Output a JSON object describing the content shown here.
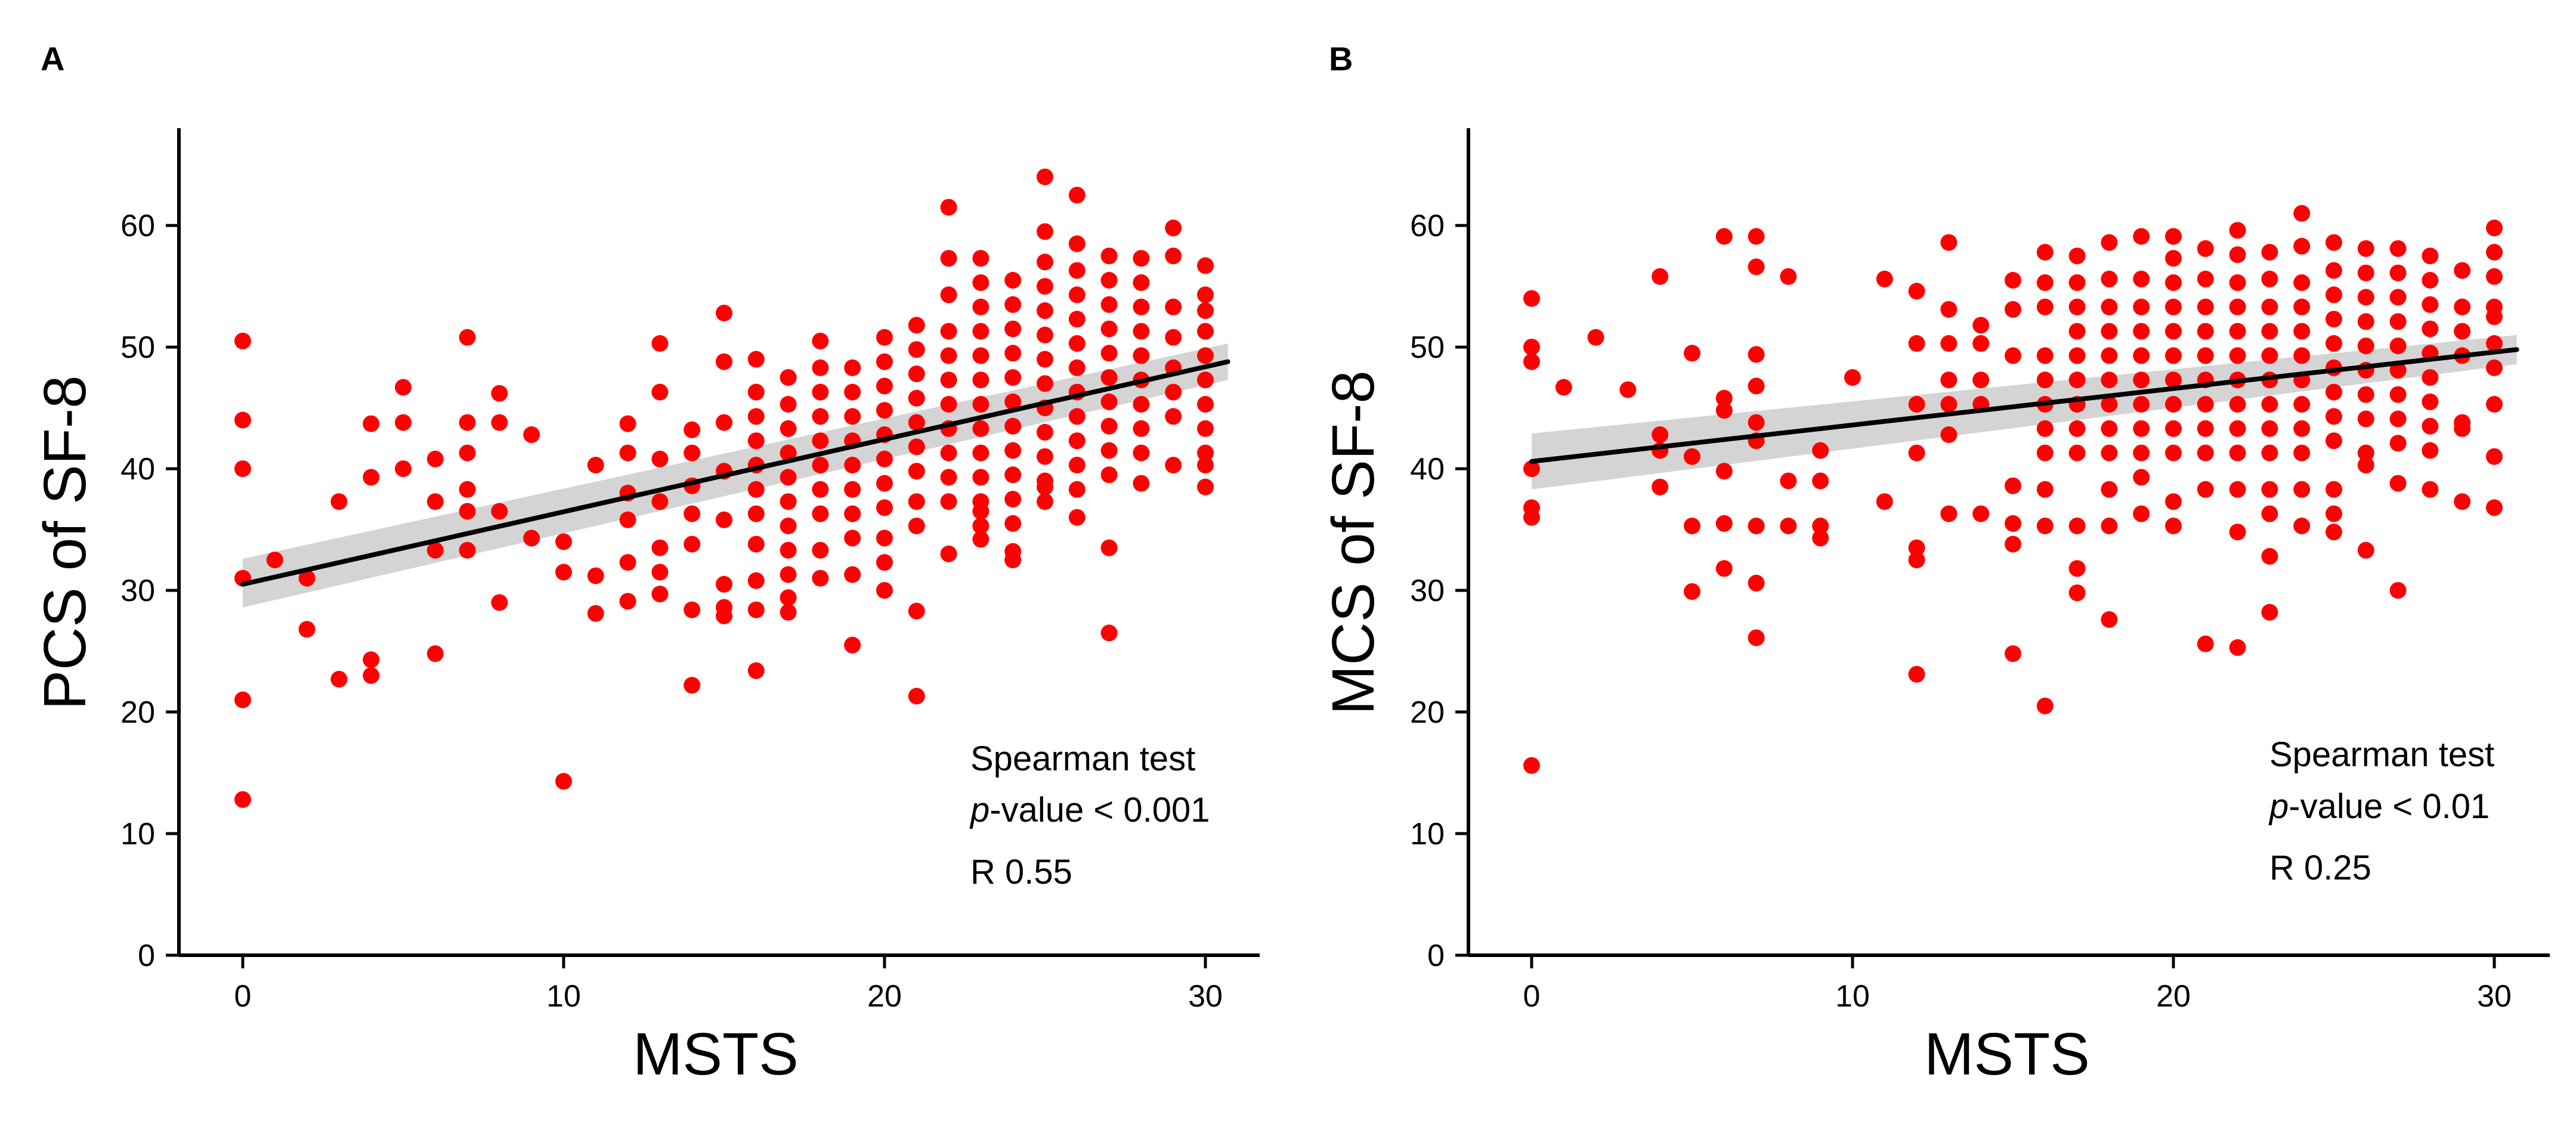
{
  "figure": {
    "panels": [
      {
        "label": "A",
        "xlabel": "MSTS",
        "ylabel": "PCS of SF-8",
        "annotation": {
          "line1": "Spearman test",
          "p_italic": "p",
          "p_rest": "-value < 0.001",
          "line3": "R 0.55"
        }
      },
      {
        "label": "B",
        "xlabel": "MSTS",
        "ylabel": "MCS of SF-8",
        "annotation": {
          "line1": "Spearman test",
          "p_italic": "p",
          "p_rest": "-value < 0.01",
          "line3": "R 0.25"
        }
      }
    ]
  },
  "colors": {
    "points": "#ff0000",
    "fit_line": "#000000",
    "confidence_band": "#cfcfcf",
    "axes": "#000000"
  },
  "chart_data": [
    {
      "type": "scatter",
      "title": "",
      "xlabel": "MSTS",
      "ylabel": "PCS of SF-8",
      "xlim": [
        -2,
        31.5
      ],
      "ylim": [
        0,
        68
      ],
      "xticks": [
        0,
        10,
        20,
        30
      ],
      "yticks": [
        0,
        10,
        20,
        30,
        40,
        50,
        60
      ],
      "grid": false,
      "legend": "none",
      "fit": {
        "x": [
          0,
          30.7
        ],
        "y": [
          30.5,
          48.8
        ],
        "ci_low": [
          28.6,
          47.3
        ],
        "ci_high": [
          32.6,
          50.3
        ]
      },
      "series": [
        {
          "x": [
            0,
            0,
            0,
            0,
            0,
            0,
            1,
            2,
            2,
            3,
            3,
            4,
            4,
            4,
            4,
            5,
            5,
            5,
            6,
            6,
            6,
            6,
            7,
            7,
            7,
            7,
            7,
            7,
            8,
            8,
            8,
            8,
            9,
            9,
            10,
            10,
            10,
            11,
            11,
            11,
            12,
            12,
            12,
            12,
            12,
            12,
            13,
            13,
            13,
            13,
            13,
            13,
            13,
            14,
            14,
            14,
            14,
            14,
            14,
            14,
            15,
            15,
            15,
            15,
            15,
            15,
            15,
            15,
            16,
            16,
            16,
            16,
            16,
            16,
            16,
            16,
            16,
            16,
            16,
            17,
            17,
            17,
            17,
            17,
            17,
            17,
            17,
            17,
            17,
            17,
            18,
            18,
            18,
            18,
            18,
            18,
            18,
            18,
            18,
            18,
            19,
            19,
            19,
            19,
            19,
            19,
            19,
            19,
            19,
            19,
            20,
            20,
            20,
            20,
            20,
            20,
            20,
            20,
            20,
            20,
            20,
            21,
            21,
            21,
            21,
            21,
            21,
            21,
            21,
            21,
            21,
            21,
            22,
            22,
            22,
            22,
            22,
            22,
            22,
            22,
            22,
            22,
            22,
            22,
            23,
            23,
            23,
            23,
            23,
            23,
            23,
            23,
            23,
            23,
            23,
            23,
            23,
            23,
            24,
            24,
            24,
            24,
            24,
            24,
            24,
            24,
            24,
            24,
            24,
            24,
            24,
            25,
            25,
            25,
            25,
            25,
            25,
            25,
            25,
            25,
            25,
            25,
            25,
            25,
            25,
            26,
            26,
            26,
            26,
            26,
            26,
            26,
            26,
            26,
            26,
            26,
            26,
            26,
            27,
            27,
            27,
            27,
            27,
            27,
            27,
            27,
            27,
            27,
            27,
            27,
            28,
            28,
            28,
            28,
            28,
            28,
            28,
            28,
            28,
            28,
            29,
            29,
            29,
            29,
            29,
            29,
            29,
            29,
            30,
            30,
            30,
            30,
            30,
            30,
            30,
            30,
            30,
            30,
            30
          ],
          "y": [
            50.5,
            44,
            40,
            31,
            21,
            12.8,
            32.5,
            31,
            26.8,
            37.3,
            22.7,
            43.7,
            39.3,
            24.3,
            23,
            46.7,
            43.8,
            40,
            40.8,
            37.3,
            33.3,
            24.8,
            50.8,
            43.8,
            41.3,
            38.3,
            36.5,
            33.3,
            46.2,
            43.8,
            36.5,
            29,
            42.8,
            34.3,
            34,
            31.5,
            14.3,
            40.3,
            31.2,
            28.1,
            43.7,
            41.3,
            38,
            35.8,
            32.3,
            29.1,
            50.3,
            46.3,
            40.8,
            37.3,
            33.5,
            31.5,
            29.7,
            43.2,
            41.3,
            38.6,
            36.3,
            33.8,
            28.4,
            22.2,
            52.8,
            48.8,
            43.8,
            39.8,
            35.8,
            30.5,
            28.6,
            27.9,
            49,
            46.3,
            44.3,
            42.3,
            40.3,
            38.3,
            36.3,
            33.8,
            30.8,
            28.4,
            23.4,
            47.5,
            45.3,
            43.3,
            41.3,
            39.3,
            37.3,
            35.3,
            33.3,
            31.3,
            29.4,
            28.2,
            50.5,
            48.3,
            46.3,
            44.3,
            42.3,
            40.3,
            38.3,
            36.3,
            33.3,
            31,
            48.3,
            46.3,
            44.3,
            42.3,
            40.3,
            38.3,
            36.3,
            34.3,
            31.3,
            25.5,
            50.8,
            48.8,
            46.8,
            44.8,
            42.8,
            40.8,
            38.8,
            36.8,
            34.3,
            32.3,
            30,
            51.8,
            49.8,
            47.8,
            45.8,
            43.8,
            41.8,
            39.8,
            37.3,
            35.3,
            28.3,
            21.3,
            61.5,
            57.3,
            54.3,
            51.3,
            49.3,
            47.3,
            45.3,
            43.3,
            41.3,
            39.3,
            37.3,
            33,
            57.3,
            55.3,
            53.3,
            51.3,
            49.3,
            47.3,
            45.3,
            43.3,
            41.3,
            39.3,
            37.3,
            35.3,
            36.5,
            34.2,
            55.5,
            53.5,
            51.5,
            49.5,
            47.5,
            45.5,
            43.5,
            41.5,
            39.5,
            37.5,
            35.5,
            32.5,
            33.2,
            64,
            59.5,
            57,
            55,
            53,
            51,
            49,
            47,
            45,
            43,
            41,
            39,
            37.3,
            38.5,
            62.5,
            58.5,
            56.3,
            54.3,
            52.3,
            50.3,
            48.3,
            46.3,
            44.3,
            42.3,
            40.3,
            38.3,
            36,
            57.5,
            55.5,
            53.5,
            51.5,
            49.5,
            47.5,
            45.5,
            43.5,
            41.5,
            39.5,
            33.5,
            26.5,
            57.3,
            55.3,
            53.3,
            51.3,
            49.3,
            47.3,
            45.3,
            43.3,
            41.3,
            38.8,
            59.8,
            57.5,
            53.3,
            50.8,
            48.3,
            46.3,
            44.3,
            40.3,
            56.7,
            54.3,
            53,
            51.3,
            49.3,
            47.3,
            45.3,
            43.3,
            41.3,
            40.3,
            38.5
          ]
        }
      ]
    },
    {
      "type": "scatter",
      "title": "",
      "xlabel": "MSTS",
      "ylabel": "MCS of SF-8",
      "xlim": [
        -2,
        31.5
      ],
      "ylim": [
        0,
        68
      ],
      "xticks": [
        0,
        10,
        20,
        30
      ],
      "yticks": [
        0,
        10,
        20,
        30,
        40,
        50,
        60
      ],
      "grid": false,
      "legend": "none",
      "fit": {
        "x": [
          0,
          30.7
        ],
        "y": [
          40.6,
          49.8
        ],
        "ci_low": [
          38.3,
          48.6
        ],
        "ci_high": [
          42.9,
          51
        ]
      },
      "series": [
        {
          "x": [
            0,
            0,
            0,
            0,
            0,
            0,
            0,
            1,
            2,
            3,
            4,
            4,
            4,
            4,
            5,
            5,
            5,
            5,
            6,
            6,
            6,
            6,
            6,
            6,
            7,
            7,
            7,
            7,
            7,
            7,
            7,
            7,
            7,
            8,
            8,
            8,
            9,
            9,
            9,
            9,
            10,
            11,
            11,
            12,
            12,
            12,
            12,
            12,
            12,
            12,
            13,
            13,
            13,
            13,
            13,
            13,
            13,
            14,
            14,
            14,
            14,
            14,
            15,
            15,
            15,
            15,
            15,
            15,
            15,
            16,
            16,
            16,
            16,
            16,
            16,
            16,
            16,
            16,
            16,
            16,
            17,
            17,
            17,
            17,
            17,
            17,
            17,
            17,
            17,
            17,
            17,
            17,
            18,
            18,
            18,
            18,
            18,
            18,
            18,
            18,
            18,
            18,
            18,
            18,
            19,
            19,
            19,
            19,
            19,
            19,
            19,
            19,
            19,
            19,
            19,
            20,
            20,
            20,
            20,
            20,
            20,
            20,
            20,
            20,
            20,
            20,
            20,
            21,
            21,
            21,
            21,
            21,
            21,
            21,
            21,
            21,
            21,
            21,
            22,
            22,
            22,
            22,
            22,
            22,
            22,
            22,
            22,
            22,
            22,
            22,
            22,
            23,
            23,
            23,
            23,
            23,
            23,
            23,
            23,
            23,
            23,
            23,
            23,
            23,
            24,
            24,
            24,
            24,
            24,
            24,
            24,
            24,
            24,
            24,
            24,
            24,
            25,
            25,
            25,
            25,
            25,
            25,
            25,
            25,
            25,
            25,
            25,
            25,
            26,
            26,
            26,
            26,
            26,
            26,
            26,
            26,
            26,
            26,
            26,
            27,
            27,
            27,
            27,
            27,
            27,
            27,
            27,
            27,
            27,
            27,
            28,
            28,
            28,
            28,
            28,
            28,
            28,
            28,
            28,
            28,
            29,
            29,
            29,
            29,
            29,
            29,
            29,
            30,
            30,
            30,
            30,
            30,
            30,
            30,
            30,
            30,
            30
          ],
          "y": [
            54,
            50,
            48.8,
            40,
            36.8,
            36,
            15.6,
            46.7,
            50.8,
            46.5,
            55.8,
            42.8,
            41.5,
            38.5,
            49.5,
            41,
            35.3,
            29.9,
            59.1,
            45.8,
            44.8,
            39.8,
            35.5,
            31.8,
            59.1,
            56.6,
            49.4,
            46.8,
            43.8,
            42.3,
            35.3,
            30.6,
            26.1,
            55.8,
            39,
            35.3,
            41.5,
            39,
            35.3,
            34.3,
            47.5,
            55.6,
            37.3,
            54.6,
            50.3,
            45.3,
            41.3,
            33.5,
            32.5,
            23.1,
            58.6,
            53.1,
            50.3,
            47.3,
            45.3,
            42.8,
            36.3,
            51.8,
            50.3,
            47.3,
            45.3,
            36.3,
            55.5,
            53.1,
            49.3,
            38.6,
            35.5,
            33.8,
            24.8,
            57.8,
            55.3,
            53.3,
            49.3,
            47.3,
            45.3,
            43.3,
            41.3,
            38.3,
            35.3,
            20.5,
            57.5,
            55.3,
            53.3,
            51.3,
            49.3,
            47.3,
            45.3,
            43.3,
            41.3,
            35.3,
            31.8,
            29.8,
            58.6,
            55.6,
            53.3,
            51.3,
            49.3,
            47.3,
            45.3,
            43.3,
            41.3,
            38.3,
            35.3,
            27.6,
            59.1,
            55.6,
            53.3,
            51.3,
            49.3,
            47.3,
            45.3,
            43.3,
            41.3,
            39.3,
            36.3,
            59.1,
            57.3,
            55.3,
            53.3,
            51.3,
            49.3,
            47.3,
            45.3,
            43.3,
            41.3,
            37.3,
            35.3,
            58.1,
            55.6,
            53.3,
            51.3,
            49.3,
            47.3,
            45.3,
            43.3,
            41.3,
            38.3,
            25.6,
            59.6,
            57.6,
            55.3,
            53.3,
            51.3,
            49.3,
            47.3,
            45.3,
            43.3,
            41.3,
            38.3,
            34.8,
            25.3,
            57.8,
            55.6,
            53.3,
            51.3,
            49.3,
            47.3,
            45.3,
            43.3,
            41.3,
            38.3,
            36.3,
            32.8,
            28.2,
            61,
            58.3,
            55.3,
            53.3,
            51.3,
            49.3,
            47.3,
            45.3,
            43.3,
            41.3,
            38.3,
            35.3,
            58.6,
            56.3,
            54.3,
            52.3,
            50.3,
            48.3,
            46.3,
            44.3,
            42.3,
            38.3,
            36.3,
            34.8,
            58.1,
            56.1,
            54.1,
            52.1,
            50.1,
            48.1,
            46.1,
            44.1,
            41.3,
            40.3,
            33.3,
            58.1,
            56.1,
            54.1,
            52.1,
            50.1,
            48.1,
            46.1,
            44.1,
            42.1,
            38.8,
            30,
            57.5,
            55.5,
            53.5,
            51.5,
            49.5,
            47.5,
            45.5,
            43.5,
            41.5,
            38.3,
            56.3,
            53.3,
            51.3,
            49.3,
            43.8,
            43.3,
            37.3,
            59.8,
            57.8,
            55.8,
            53.3,
            52.5,
            50.3,
            48.3,
            45.3,
            41,
            36.8
          ]
        }
      ]
    }
  ]
}
